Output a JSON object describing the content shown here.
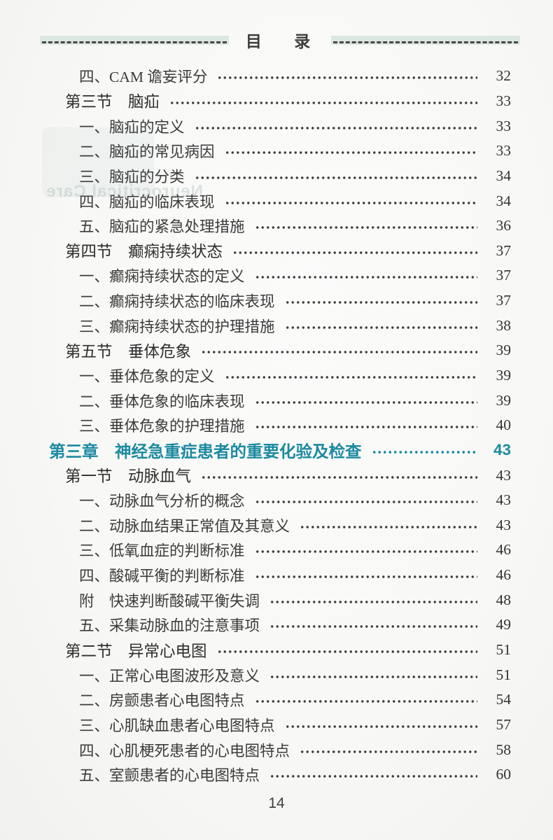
{
  "header": {
    "title": "目 录"
  },
  "footer": {
    "page_number": "14"
  },
  "bleed_through": {
    "text": "Neurocritical Care"
  },
  "colors": {
    "accent_teal": "#1c8aa0",
    "band_green": "#dbe8df",
    "text": "#3b3b3b",
    "paper": "#f8f8f6"
  },
  "toc": {
    "entries": [
      {
        "level": "sub",
        "label": "四、CAM 谵妄评分",
        "page": "32"
      },
      {
        "level": "section",
        "label": "第三节　脑疝",
        "page": "33"
      },
      {
        "level": "sub",
        "label": "一、脑疝的定义",
        "page": "33"
      },
      {
        "level": "sub",
        "label": "二、脑疝的常见病因",
        "page": "33"
      },
      {
        "level": "sub",
        "label": "三、脑疝的分类",
        "page": "34"
      },
      {
        "level": "sub",
        "label": "四、脑疝的临床表现",
        "page": "34"
      },
      {
        "level": "sub",
        "label": "五、脑疝的紧急处理措施",
        "page": "36"
      },
      {
        "level": "section",
        "label": "第四节　癫痫持续状态",
        "page": "37"
      },
      {
        "level": "sub",
        "label": "一、癫痫持续状态的定义",
        "page": "37"
      },
      {
        "level": "sub",
        "label": "二、癫痫持续状态的临床表现",
        "page": "37"
      },
      {
        "level": "sub",
        "label": "三、癫痫持续状态的护理措施",
        "page": "38"
      },
      {
        "level": "section",
        "label": "第五节　垂体危象",
        "page": "39"
      },
      {
        "level": "sub",
        "label": "一、垂体危象的定义",
        "page": "39"
      },
      {
        "level": "sub",
        "label": "二、垂体危象的临床表现",
        "page": "39"
      },
      {
        "level": "sub",
        "label": "三、垂体危象的护理措施",
        "page": "40"
      },
      {
        "level": "chapter",
        "label": "第三章　神经急重症患者的重要化验及检查",
        "page": "43"
      },
      {
        "level": "section",
        "label": "第一节　动脉血气",
        "page": "43"
      },
      {
        "level": "sub",
        "label": "一、动脉血气分析的概念",
        "page": "43"
      },
      {
        "level": "sub",
        "label": "二、动脉血结果正常值及其意义",
        "page": "43"
      },
      {
        "level": "sub",
        "label": "三、低氧血症的判断标准",
        "page": "46"
      },
      {
        "level": "sub",
        "label": "四、酸碱平衡的判断标准",
        "page": "46"
      },
      {
        "level": "sub",
        "label": "附　快速判断酸碱平衡失调",
        "page": "48"
      },
      {
        "level": "sub",
        "label": "五、采集动脉血的注意事项",
        "page": "49"
      },
      {
        "level": "section",
        "label": "第二节　异常心电图",
        "page": "51"
      },
      {
        "level": "sub",
        "label": "一、正常心电图波形及意义",
        "page": "51"
      },
      {
        "level": "sub",
        "label": "二、房颤患者心电图特点",
        "page": "54"
      },
      {
        "level": "sub",
        "label": "三、心肌缺血患者心电图特点",
        "page": "57"
      },
      {
        "level": "sub",
        "label": "四、心肌梗死患者的心电图特点",
        "page": "58"
      },
      {
        "level": "sub",
        "label": "五、室颤患者的心电图特点",
        "page": "60"
      }
    ]
  }
}
